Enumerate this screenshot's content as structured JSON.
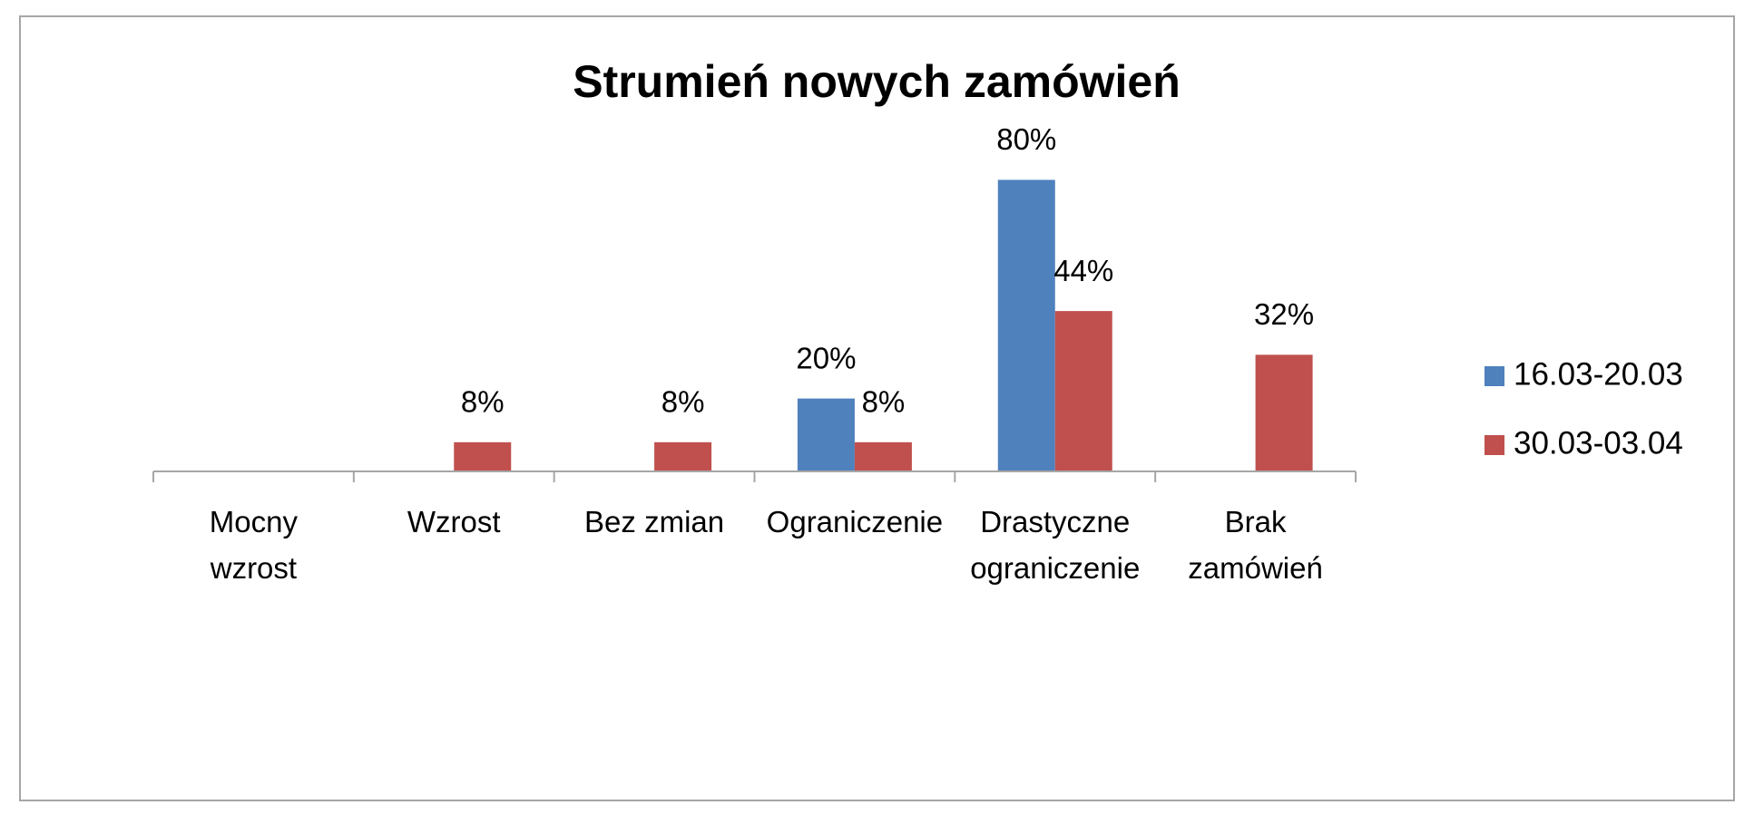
{
  "chart_data": {
    "type": "bar",
    "title": "Strumień nowych zamówień",
    "categories": [
      "Mocny\nwzrost",
      "Wzrost",
      "Bez zmian",
      "Ograniczenie",
      "Drastyczne\nograniczenie",
      "Brak\nzamówień"
    ],
    "series": [
      {
        "name": "16.03-20.03",
        "color": "#4f81bd",
        "values": [
          null,
          null,
          null,
          20,
          80,
          null
        ],
        "value_labels": [
          null,
          null,
          null,
          "20%",
          "80%",
          null
        ]
      },
      {
        "name": "30.03-03.04",
        "color": "#c0504d",
        "values": [
          null,
          8,
          8,
          8,
          44,
          32
        ],
        "value_labels": [
          null,
          "8%",
          "8%",
          "8%",
          "44%",
          "32%"
        ]
      }
    ],
    "ylim": [
      0,
      100
    ],
    "legend": "right"
  }
}
